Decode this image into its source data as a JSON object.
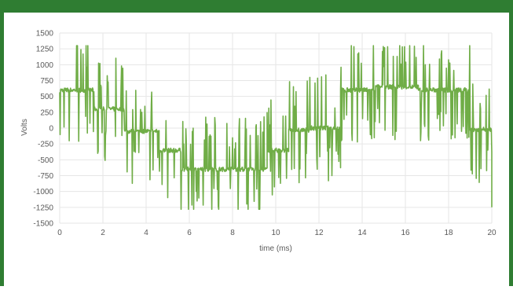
{
  "colors": {
    "header": "#2f7d32",
    "series": "#70ad47",
    "grid": "#e6e6e6",
    "text": "#595959"
  },
  "chart_data": {
    "type": "line",
    "xlabel": "time (ms)",
    "ylabel": "Volts",
    "xlim": [
      0,
      20
    ],
    "ylim": [
      -1500,
      1500
    ],
    "x_ticks": [
      0,
      2,
      4,
      6,
      8,
      10,
      12,
      14,
      16,
      18,
      20
    ],
    "y_ticks": [
      -1500,
      -1250,
      -1000,
      -750,
      -500,
      -250,
      0,
      250,
      500,
      750,
      1000,
      1250,
      1500
    ],
    "grid": true,
    "legend": "none",
    "series": [
      {
        "description_levels": "three-level PWM voltage with switching spikes",
        "segments": [
          {
            "x_start": 0.0,
            "x_end": 1.6,
            "level": 600
          },
          {
            "x_start": 1.6,
            "x_end": 3.0,
            "level": 300
          },
          {
            "x_start": 3.0,
            "x_end": 4.6,
            "level": -50
          },
          {
            "x_start": 4.6,
            "x_end": 5.6,
            "level": -350
          },
          {
            "x_start": 5.6,
            "x_end": 9.6,
            "level": -650
          },
          {
            "x_start": 9.6,
            "x_end": 10.6,
            "level": -350
          },
          {
            "x_start": 10.6,
            "x_end": 11.6,
            "level": -30
          },
          {
            "x_start": 11.6,
            "x_end": 13.0,
            "level": 0
          },
          {
            "x_start": 13.0,
            "x_end": 14.6,
            "level": 600
          },
          {
            "x_start": 14.6,
            "x_end": 16.6,
            "level": 650
          },
          {
            "x_start": 16.6,
            "x_end": 19.0,
            "level": 600
          },
          {
            "x_start": 19.0,
            "x_end": 20.0,
            "level": -20
          }
        ]
      }
    ]
  }
}
